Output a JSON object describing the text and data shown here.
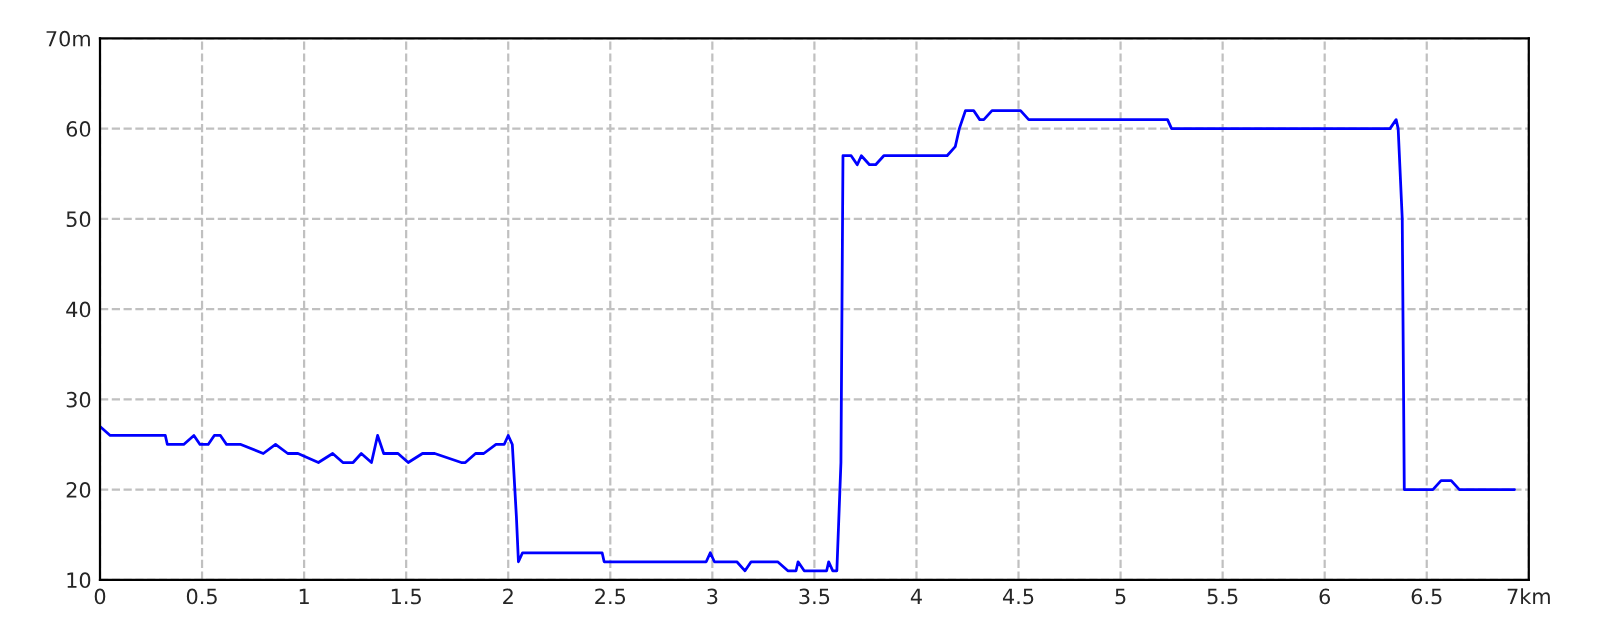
{
  "chart_data": {
    "type": "line",
    "x": [
      0,
      0.05,
      0.32,
      0.33,
      0.41,
      0.46,
      0.49,
      0.53,
      0.56,
      0.59,
      0.62,
      0.69,
      0.8,
      0.86,
      0.92,
      0.97,
      1.07,
      1.14,
      1.19,
      1.24,
      1.28,
      1.33,
      1.36,
      1.39,
      1.46,
      1.51,
      1.58,
      1.64,
      1.77,
      1.79,
      1.84,
      1.88,
      1.94,
      1.98,
      2.0,
      2.02,
      2.04,
      2.05,
      2.07,
      2.46,
      2.47,
      2.97,
      2.99,
      3.01,
      3.12,
      3.16,
      3.19,
      3.32,
      3.37,
      3.41,
      3.42,
      3.45,
      3.48,
      3.56,
      3.57,
      3.59,
      3.61,
      3.63,
      3.64,
      3.68,
      3.71,
      3.73,
      3.77,
      3.8,
      3.84,
      4.15,
      4.19,
      4.21,
      4.24,
      4.28,
      4.31,
      4.33,
      4.37,
      4.51,
      4.55,
      5.23,
      5.25,
      6.32,
      6.35,
      6.36,
      6.38,
      6.39,
      6.53,
      6.57,
      6.62,
      6.66,
      6.93
    ],
    "series": [
      {
        "color": "#0000ff",
        "values": [
          27,
          26,
          26,
          25,
          25,
          26,
          25,
          25,
          26,
          26,
          25,
          25,
          24,
          25,
          24,
          24,
          23,
          24,
          23,
          23,
          24,
          23,
          26,
          24,
          24,
          23,
          24,
          24,
          23,
          23,
          24,
          24,
          25,
          25,
          26,
          25,
          17,
          12,
          13,
          13,
          12,
          12,
          13,
          12,
          12,
          11,
          12,
          12,
          11,
          11,
          12,
          11,
          11,
          11,
          12,
          11,
          11,
          23,
          57,
          57,
          56,
          57,
          56,
          56,
          57,
          57,
          58,
          60,
          62,
          62,
          61,
          61,
          62,
          62,
          61,
          61,
          60,
          60,
          61,
          60,
          50,
          20,
          20,
          21,
          21,
          20,
          20
        ]
      }
    ],
    "xlim": [
      0,
      7
    ],
    "ylim": [
      10,
      70
    ],
    "xticks": [
      0,
      0.5,
      1,
      1.5,
      2,
      2.5,
      3,
      3.5,
      4,
      4.5,
      5,
      5.5,
      6,
      6.5,
      {
        "value": 7,
        "label": "7km"
      }
    ],
    "yticks": [
      10,
      20,
      30,
      40,
      50,
      60,
      {
        "value": 70,
        "label": "70m"
      }
    ],
    "grid": true,
    "marker": "none",
    "line_style": "solid",
    "legend": false
  }
}
